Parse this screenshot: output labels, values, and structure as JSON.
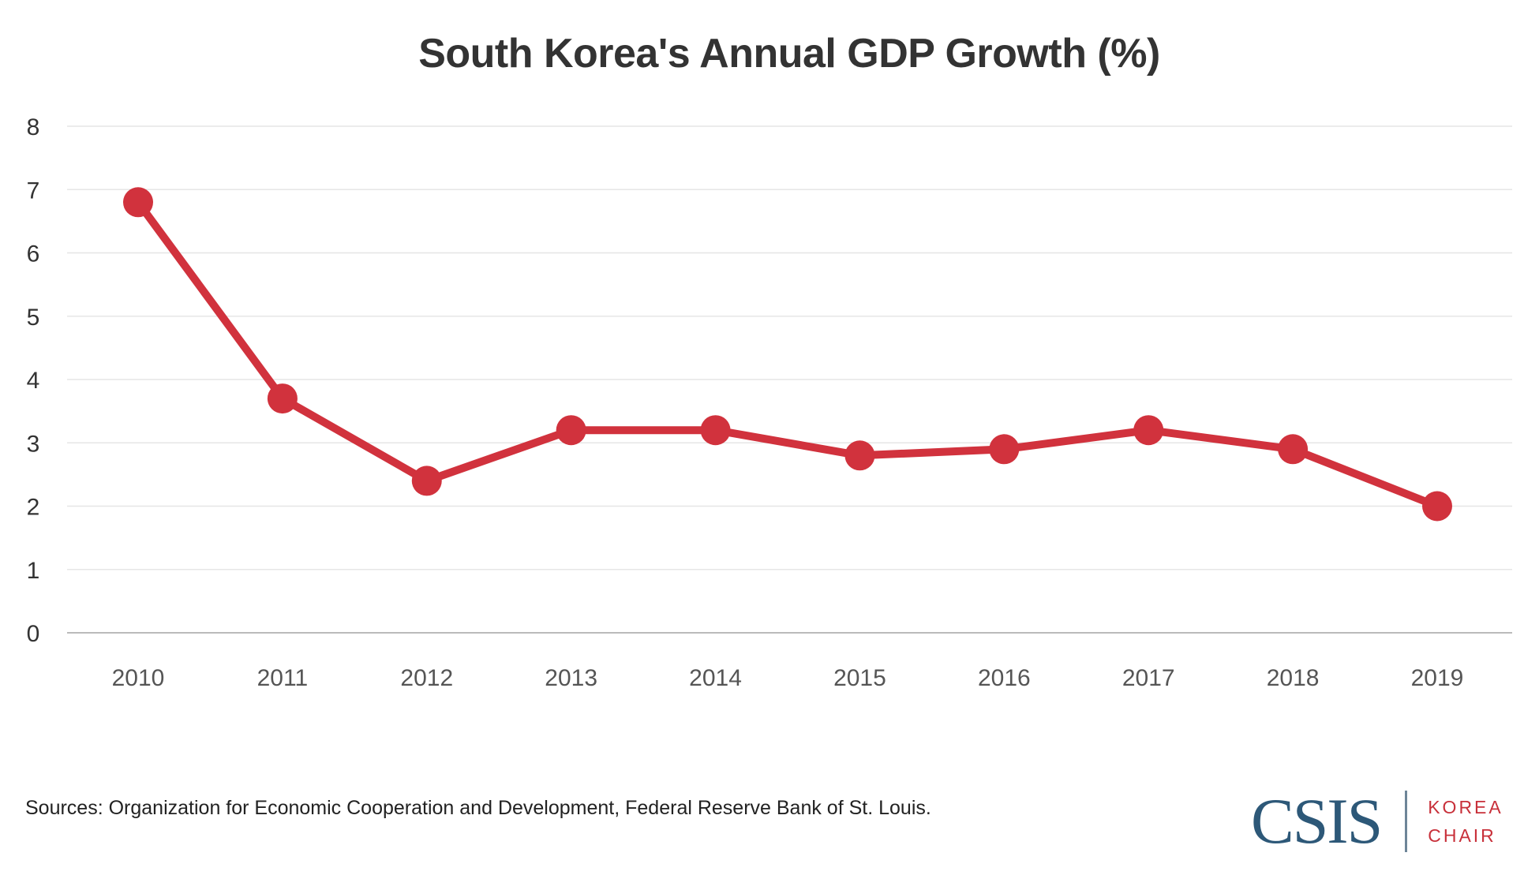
{
  "chart_data": {
    "type": "line",
    "title": "South Korea's Annual GDP Growth (%)",
    "xlabel": "",
    "ylabel": "",
    "categories": [
      "2010",
      "2011",
      "2012",
      "2013",
      "2014",
      "2015",
      "2016",
      "2017",
      "2018",
      "2019"
    ],
    "series": [
      {
        "name": "GDP Growth (%)",
        "values": [
          6.8,
          3.7,
          2.4,
          3.2,
          3.2,
          2.8,
          2.9,
          3.2,
          2.9,
          2.0
        ],
        "color": "#d1323d"
      }
    ],
    "ylim": [
      0,
      8
    ],
    "yticks": [
      "0",
      "1",
      "2",
      "3",
      "4",
      "5",
      "6",
      "7",
      "8"
    ],
    "grid": true,
    "legend": "none"
  },
  "footer": {
    "sources": "Sources: Organization for Economic Cooperation and Development, Federal Reserve Bank of St. Louis.",
    "logo": {
      "org": "CSIS",
      "unit_line1": "KOREA",
      "unit_line2": "CHAIR"
    }
  },
  "colors": {
    "line": "#d1323d",
    "title": "#333333",
    "grid": "#e6e6e6",
    "axis": "#bbbbbb",
    "logo_blue": "#2d5878",
    "logo_red": "#c8303a"
  }
}
